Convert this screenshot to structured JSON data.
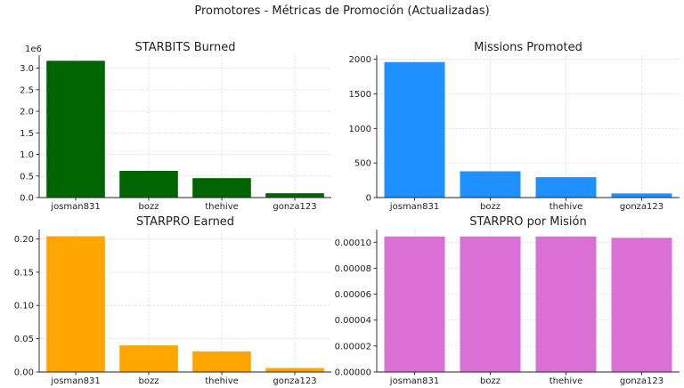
{
  "figure": {
    "title": "Promotores - Métricas de Promoción (Actualizadas)"
  },
  "chart_data": [
    {
      "type": "bar",
      "title": "STARBITS Burned",
      "categories": [
        "josman831",
        "bozz",
        "thehive",
        "gonza123"
      ],
      "values": [
        3170000,
        620000,
        450000,
        100000
      ],
      "ylim": [
        0,
        3300000
      ],
      "yticks": [
        0,
        500000,
        1000000,
        1500000,
        2000000,
        2500000,
        3000000
      ],
      "ytick_labels": [
        "0.0",
        "0.5",
        "1.0",
        "1.5",
        "2.0",
        "2.5",
        "3.0"
      ],
      "offset_label": "1e6",
      "color": "#006400",
      "grid": true
    },
    {
      "type": "bar",
      "title": "Missions Promoted",
      "categories": [
        "josman831",
        "bozz",
        "thehive",
        "gonza123"
      ],
      "values": [
        1960,
        380,
        295,
        60
      ],
      "ylim": [
        0,
        2060
      ],
      "yticks": [
        0,
        500,
        1000,
        1500,
        2000
      ],
      "ytick_labels": [
        "0",
        "500",
        "1000",
        "1500",
        "2000"
      ],
      "offset_label": "",
      "color": "#1E90FF",
      "grid": true
    },
    {
      "type": "bar",
      "title": "STARPRO Earned",
      "categories": [
        "josman831",
        "bozz",
        "thehive",
        "gonza123"
      ],
      "values": [
        0.204,
        0.04,
        0.031,
        0.006
      ],
      "ylim": [
        0,
        0.214
      ],
      "yticks": [
        0,
        0.05,
        0.1,
        0.15,
        0.2
      ],
      "ytick_labels": [
        "0.00",
        "0.05",
        "0.10",
        "0.15",
        "0.20"
      ],
      "offset_label": "",
      "color": "#FFA500",
      "grid": true
    },
    {
      "type": "bar",
      "title": "STARPRO por Misión",
      "categories": [
        "josman831",
        "bozz",
        "thehive",
        "gonza123"
      ],
      "values": [
        0.0001045,
        0.0001045,
        0.0001045,
        0.0001035
      ],
      "ylim": [
        0,
        0.0001098
      ],
      "yticks": [
        0,
        2e-05,
        4e-05,
        6e-05,
        8e-05,
        0.0001
      ],
      "ytick_labels": [
        "0.00000",
        "0.00002",
        "0.00004",
        "0.00006",
        "0.00008",
        "0.00010"
      ],
      "offset_label": "",
      "color": "#DA70D6",
      "grid": true
    }
  ]
}
